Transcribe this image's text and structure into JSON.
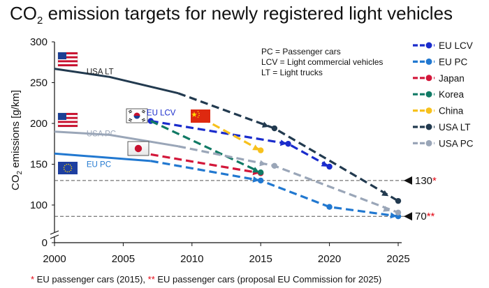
{
  "chart_data": {
    "type": "line",
    "title_main": "CO",
    "title_sub": "2",
    "title_rest": " emission targets for newly registered light vehicles",
    "title": "CO2 emission targets for newly registered light vehicles",
    "ylabel_main": "CO",
    "ylabel_sub": "2",
    "ylabel_rest": " emissions [g/km]",
    "ylabel": "CO2 emissions [g/km]",
    "xlim": [
      2000,
      2025
    ],
    "ylim": [
      0,
      300
    ],
    "x_ticks": [
      "2000",
      "2005",
      "2010",
      "2015",
      "2020",
      "2025"
    ],
    "y_ticks": [
      "0",
      "100",
      "150",
      "200",
      "250",
      "300"
    ],
    "notes": [
      "PC = Passenger cars",
      "LCV = Light commercial vehicles",
      "LT = Light trucks"
    ],
    "reference_lines": [
      {
        "value": 130,
        "label": "130",
        "stars": "*"
      },
      {
        "value": 70,
        "label": "70",
        "stars": "**"
      }
    ],
    "series": [
      {
        "name": "EU LCV",
        "color": "#1a2ccc",
        "solid": [],
        "dashed": [
          [
            2007,
            203
          ],
          [
            2017,
            175
          ],
          [
            2020,
            147
          ]
        ],
        "markers": [
          [
            2007,
            203
          ],
          [
            2017,
            175
          ],
          [
            2020,
            147
          ]
        ],
        "arrows_to": [
          2017,
          2020
        ]
      },
      {
        "name": "EU PC",
        "color": "#2178d0",
        "solid": [
          [
            2000,
            163
          ],
          [
            2007,
            154
          ]
        ],
        "dashed": [
          [
            2007,
            154
          ],
          [
            2015,
            130
          ],
          [
            2020,
            95
          ],
          [
            2025,
            70
          ]
        ],
        "markers": [
          [
            2015,
            130
          ],
          [
            2020,
            95
          ],
          [
            2025,
            70
          ]
        ],
        "arrows_to": [
          2015,
          2025
        ]
      },
      {
        "name": "Japan",
        "color": "#d3173a",
        "solid": [],
        "dashed": [
          [
            2007,
            162
          ],
          [
            2015,
            139
          ]
        ],
        "markers": [
          [
            2015,
            139
          ]
        ],
        "arrows_to": [
          2015
        ]
      },
      {
        "name": "Korea",
        "color": "#117a65",
        "solid": [],
        "dashed": [
          [
            2007,
            203
          ],
          [
            2015,
            140
          ]
        ],
        "markers": [
          [
            2015,
            140
          ]
        ],
        "arrows_to": [
          2015
        ]
      },
      {
        "name": "China",
        "color": "#f7c11d",
        "solid": [],
        "dashed": [
          [
            2010,
            213
          ],
          [
            2015,
            167
          ]
        ],
        "markers": [
          [
            2015,
            167
          ]
        ],
        "arrows_to": [
          2015
        ]
      },
      {
        "name": "USA LT",
        "color": "#223a4f",
        "solid": [
          [
            2000,
            267
          ],
          [
            2004,
            257
          ],
          [
            2009,
            237
          ]
        ],
        "dashed": [
          [
            2009,
            237
          ],
          [
            2016,
            194
          ],
          [
            2025,
            105
          ]
        ],
        "markers": [
          [
            2016,
            194
          ],
          [
            2025,
            105
          ]
        ],
        "arrows_to": [
          2015.7,
          2024.4
        ]
      },
      {
        "name": "USA PC",
        "color": "#9aa6b8",
        "solid": [
          [
            2000,
            190
          ],
          [
            2004,
            186
          ],
          [
            2009,
            172
          ]
        ],
        "dashed": [
          [
            2009,
            172
          ],
          [
            2016,
            148
          ],
          [
            2025,
            80
          ]
        ],
        "markers": [
          [
            2016,
            148
          ],
          [
            2025,
            80
          ]
        ],
        "arrows_to": [
          2015.5,
          2024.5
        ]
      }
    ],
    "annotations": [
      {
        "text": "USA LT",
        "anchor": [
          2000.4,
          274
        ]
      },
      {
        "text": "USA PC",
        "anchor": [
          2000.4,
          197
        ]
      },
      {
        "text": "EU LCV",
        "anchor": [
          2006.5,
          210
        ]
      },
      {
        "text": "EU PC",
        "anchor": [
          2000.4,
          162
        ]
      }
    ],
    "legend_placement": "right"
  },
  "footnote": {
    "star1": "*",
    "text1": " EU passenger cars (2015), ",
    "star2": "**",
    "text2": " EU passenger cars (proposal EU Commission for 2025)"
  }
}
